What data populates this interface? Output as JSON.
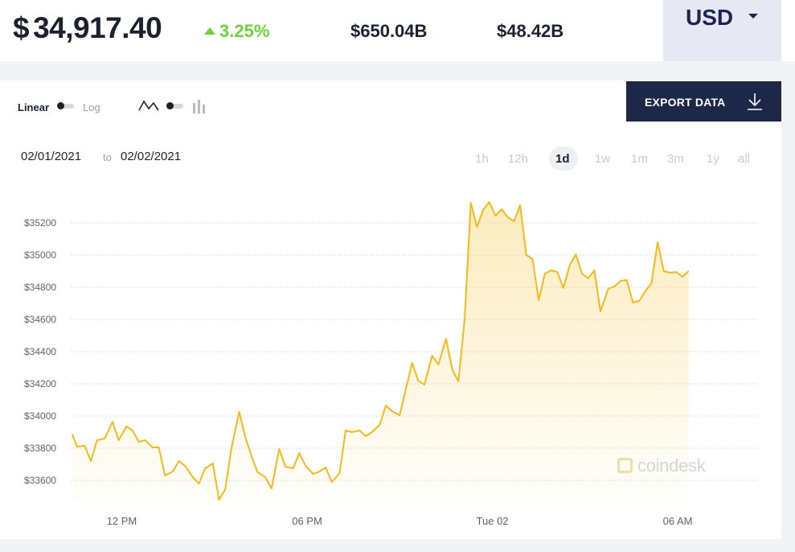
{
  "header": {
    "currency_symbol": "$",
    "price": "34,917.40",
    "change_percent": "3.25%",
    "market_cap": "$650.04B",
    "volume_24h": "$48.42B",
    "currency": "USD",
    "colors": {
      "positive": "#6fd23a",
      "dark": "#1c2130",
      "currency_bg": "#e6e8f3"
    }
  },
  "controls": {
    "scale_linear": "Linear",
    "scale_log": "Log",
    "selected_scale": "Linear",
    "chart_type_icons": [
      "line-chart-icon",
      "bar-chart-icon"
    ],
    "selected_chart_type": "line",
    "export_label": "EXPORT DATA",
    "export_icon": "download-icon",
    "export_bg": "#1d2848"
  },
  "date_range": {
    "from": "02/01/2021",
    "separator": "to",
    "to": "02/02/2021"
  },
  "timeframes": [
    "1h",
    "12h",
    "1d",
    "1w",
    "1m",
    "3m",
    "1y",
    "all"
  ],
  "selected_timeframe": "1d",
  "watermark": "coindesk",
  "chart_data": {
    "type": "area",
    "line_color": "#f5b919",
    "grid": "horizontal",
    "ylim": [
      33460,
      35360
    ],
    "y_ticks": [
      33600,
      33800,
      34000,
      34200,
      34400,
      34600,
      34800,
      35000,
      35200
    ],
    "y_tick_labels": [
      "$33600",
      "$33800",
      "$34000",
      "$34200",
      "$34400",
      "$34600",
      "$34800",
      "$35000",
      "$35200"
    ],
    "x_labels": [
      "12 PM",
      "06 PM",
      "Tue 02",
      "06 AM"
    ],
    "x_label_positions": [
      9,
      21,
      33,
      45
    ],
    "x_range": [
      5.8,
      50.2
    ],
    "series": [
      {
        "values": [
          [
            5.8,
            33885
          ],
          [
            6.1,
            33810
          ],
          [
            6.6,
            33815
          ],
          [
            7.0,
            33720
          ],
          [
            7.4,
            33850
          ],
          [
            7.9,
            33860
          ],
          [
            8.4,
            33965
          ],
          [
            8.8,
            33850
          ],
          [
            9.3,
            33935
          ],
          [
            9.7,
            33910
          ],
          [
            10.1,
            33840
          ],
          [
            10.5,
            33850
          ],
          [
            11.0,
            33805
          ],
          [
            11.4,
            33805
          ],
          [
            11.8,
            33630
          ],
          [
            12.3,
            33655
          ],
          [
            12.7,
            33720
          ],
          [
            13.1,
            33690
          ],
          [
            13.6,
            33620
          ],
          [
            14.0,
            33580
          ],
          [
            14.4,
            33675
          ],
          [
            14.9,
            33705
          ],
          [
            15.3,
            33480
          ],
          [
            15.7,
            33545
          ],
          [
            16.1,
            33800
          ],
          [
            16.6,
            34025
          ],
          [
            17.0,
            33870
          ],
          [
            17.4,
            33750
          ],
          [
            17.8,
            33650
          ],
          [
            18.3,
            33620
          ],
          [
            18.7,
            33550
          ],
          [
            19.2,
            33795
          ],
          [
            19.6,
            33685
          ],
          [
            20.1,
            33675
          ],
          [
            20.5,
            33770
          ],
          [
            20.9,
            33690
          ],
          [
            21.4,
            33640
          ],
          [
            21.8,
            33655
          ],
          [
            22.2,
            33680
          ],
          [
            22.6,
            33590
          ],
          [
            23.1,
            33645
          ],
          [
            23.5,
            33910
          ],
          [
            23.9,
            33900
          ],
          [
            24.4,
            33910
          ],
          [
            24.8,
            33875
          ],
          [
            25.2,
            33900
          ],
          [
            25.7,
            33945
          ],
          [
            26.1,
            34065
          ],
          [
            26.5,
            34030
          ],
          [
            27.0,
            34005
          ],
          [
            27.4,
            34170
          ],
          [
            27.8,
            34330
          ],
          [
            28.2,
            34220
          ],
          [
            28.6,
            34195
          ],
          [
            29.1,
            34375
          ],
          [
            29.5,
            34320
          ],
          [
            30.0,
            34480
          ],
          [
            30.4,
            34290
          ],
          [
            30.8,
            34215
          ],
          [
            31.2,
            34600
          ],
          [
            31.6,
            35325
          ],
          [
            32.0,
            35175
          ],
          [
            32.4,
            35280
          ],
          [
            32.8,
            35330
          ],
          [
            33.2,
            35245
          ],
          [
            33.6,
            35285
          ],
          [
            34.0,
            35235
          ],
          [
            34.4,
            35210
          ],
          [
            34.8,
            35310
          ],
          [
            35.2,
            35000
          ],
          [
            35.6,
            34975
          ],
          [
            36.0,
            34720
          ],
          [
            36.4,
            34885
          ],
          [
            36.8,
            34905
          ],
          [
            37.2,
            34895
          ],
          [
            37.6,
            34795
          ],
          [
            38.0,
            34935
          ],
          [
            38.4,
            35005
          ],
          [
            38.8,
            34885
          ],
          [
            39.2,
            34855
          ],
          [
            39.6,
            34905
          ],
          [
            40.0,
            34650
          ],
          [
            40.5,
            34790
          ],
          [
            40.9,
            34805
          ],
          [
            41.3,
            34840
          ],
          [
            41.7,
            34845
          ],
          [
            42.1,
            34705
          ],
          [
            42.5,
            34715
          ],
          [
            42.9,
            34775
          ],
          [
            43.3,
            34825
          ],
          [
            43.7,
            35080
          ],
          [
            44.1,
            34900
          ],
          [
            44.5,
            34890
          ],
          [
            44.9,
            34895
          ],
          [
            45.3,
            34865
          ],
          [
            45.7,
            34900
          ]
        ]
      }
    ]
  }
}
